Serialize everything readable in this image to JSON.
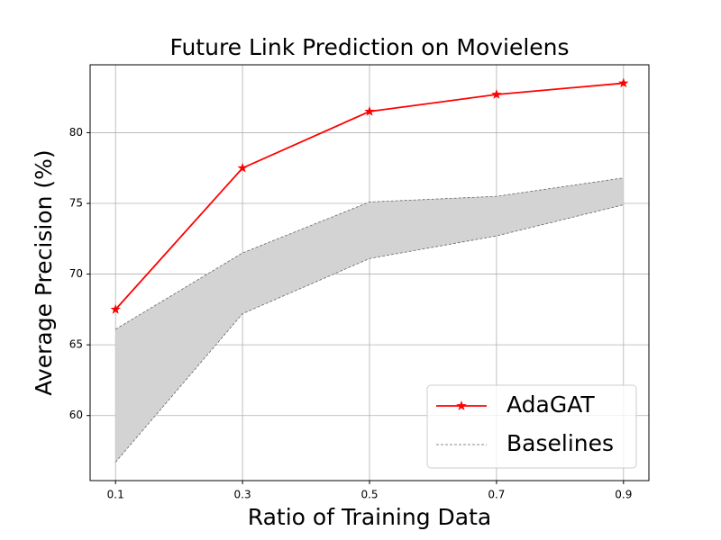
{
  "chart_data": {
    "type": "line",
    "title": "Future Link Prediction on Movielens",
    "x_label": "Ratio of Training Data",
    "y_label": "Average Precision (%)",
    "x": [
      0.1,
      0.3,
      0.5,
      0.7,
      0.9
    ],
    "series": [
      {
        "name": "AdaGAT",
        "color": "#ff0000",
        "values": [
          67.5,
          77.5,
          81.5,
          82.7,
          83.5
        ]
      },
      {
        "name": "Baselines",
        "color": "#d3d3d3",
        "upper": [
          66.1,
          71.5,
          75.1,
          75.5,
          76.8
        ],
        "lower": [
          56.7,
          67.2,
          71.1,
          72.7,
          74.9
        ]
      }
    ],
    "xlim": [
      0.06,
      0.94
    ],
    "xticks": [
      0.1,
      0.3,
      0.5,
      0.7,
      0.9
    ],
    "ylim": [
      55.4,
      84.8
    ],
    "yticks": [
      60,
      65,
      70,
      75,
      80
    ],
    "grid": true,
    "legend": "lower right"
  }
}
